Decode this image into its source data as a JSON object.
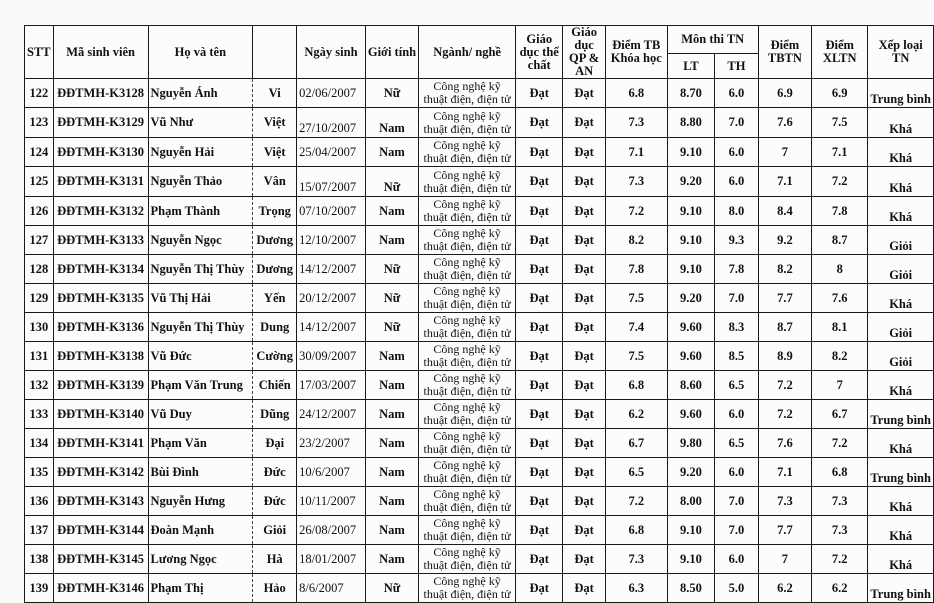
{
  "headers": {
    "stt": "STT",
    "ma": "Mã sinh viên",
    "ho_ten": "Họ và tên",
    "ngay_sinh": "Ngày sinh",
    "gioi_tinh": "Giới tính",
    "nganh": "Ngành/ nghề",
    "gdtc": "Giáo dục thể chất",
    "gdqp": "Giáo dục QP & AN",
    "diem_tb": "Điểm TB Khóa học",
    "mon_thi": "Môn thi TN",
    "lt": "LT",
    "th": "TH",
    "tbtn": "Điểm TBTN",
    "xltn": "Điểm XLTN",
    "xep_loai": "Xếp loại TN"
  },
  "rows": [
    {
      "stt": "122",
      "ma": "ĐĐTMH-K3128",
      "ho": "Nguyễn Ánh",
      "ten": "Vi",
      "ngay": "02/06/2007",
      "gt": "Nữ",
      "nganh": "Công nghệ kỹ thuật điện, điện tử",
      "gdtc": "Đạt",
      "gdqp": "Đạt",
      "tb": "6.8",
      "lt": "8.70",
      "th": "6.0",
      "tbtn": "6.9",
      "xltn": "6.9",
      "xl": "Trung bình"
    },
    {
      "stt": "123",
      "ma": "ĐĐTMH-K3129",
      "ho": "Vũ Như",
      "ten": "Việt",
      "ngay": "27/10/2007",
      "gt": "Nam",
      "nganh": "Công nghệ kỹ thuật điện, điện tử",
      "gdtc": "Đạt",
      "gdqp": "Đạt",
      "tb": "7.3",
      "lt": "8.80",
      "th": "7.0",
      "tbtn": "7.6",
      "xltn": "7.5",
      "xl": "Khá"
    },
    {
      "stt": "124",
      "ma": "ĐĐTMH-K3130",
      "ho": "Nguyễn Hải",
      "ten": "Việt",
      "ngay": "25/04/2007",
      "gt": "Nam",
      "nganh": "Công nghệ kỹ thuật điện, điện tử",
      "gdtc": "Đạt",
      "gdqp": "Đạt",
      "tb": "7.1",
      "lt": "9.10",
      "th": "6.0",
      "tbtn": "7",
      "xltn": "7.1",
      "xl": "Khá"
    },
    {
      "stt": "125",
      "ma": "ĐĐTMH-K3131",
      "ho": "Nguyễn Thảo",
      "ten": "Vân",
      "ngay": "15/07/2007",
      "gt": "Nữ",
      "nganh": "Công nghệ kỹ thuật điện, điện tử",
      "gdtc": "Đạt",
      "gdqp": "Đạt",
      "tb": "7.3",
      "lt": "9.20",
      "th": "6.0",
      "tbtn": "7.1",
      "xltn": "7.2",
      "xl": "Khá"
    },
    {
      "stt": "126",
      "ma": "ĐĐTMH-K3132",
      "ho": "Phạm Thành",
      "ten": "Trọng",
      "ngay": "07/10/2007",
      "gt": "Nam",
      "nganh": "Công nghệ kỹ thuật điện, điện tử",
      "gdtc": "Đạt",
      "gdqp": "Đạt",
      "tb": "7.2",
      "lt": "9.10",
      "th": "8.0",
      "tbtn": "8.4",
      "xltn": "7.8",
      "xl": "Khá"
    },
    {
      "stt": "127",
      "ma": "ĐĐTMH-K3133",
      "ho": "Nguyễn Ngọc",
      "ten": "Dương",
      "ngay": "12/10/2007",
      "gt": "Nam",
      "nganh": "Công nghệ kỹ thuật điện, điện tử",
      "gdtc": "Đạt",
      "gdqp": "Đạt",
      "tb": "8.2",
      "lt": "9.10",
      "th": "9.3",
      "tbtn": "9.2",
      "xltn": "8.7",
      "xl": "Giỏi"
    },
    {
      "stt": "128",
      "ma": "ĐĐTMH-K3134",
      "ho": "Nguyễn Thị Thùy",
      "ten": "Dương",
      "ngay": "14/12/2007",
      "gt": "Nữ",
      "nganh": "Công nghệ kỹ thuật điện, điện tử",
      "gdtc": "Đạt",
      "gdqp": "Đạt",
      "tb": "7.8",
      "lt": "9.10",
      "th": "7.8",
      "tbtn": "8.2",
      "xltn": "8",
      "xl": "Giỏi"
    },
    {
      "stt": "129",
      "ma": "ĐĐTMH-K3135",
      "ho": "Vũ Thị Hải",
      "ten": "Yến",
      "ngay": "20/12/2007",
      "gt": "Nữ",
      "nganh": "Công nghệ kỹ thuật điện, điện tử",
      "gdtc": "Đạt",
      "gdqp": "Đạt",
      "tb": "7.5",
      "lt": "9.20",
      "th": "7.0",
      "tbtn": "7.7",
      "xltn": "7.6",
      "xl": "Khá"
    },
    {
      "stt": "130",
      "ma": "ĐĐTMH-K3136",
      "ho": "Nguyễn Thị Thùy",
      "ten": "Dung",
      "ngay": "14/12/2007",
      "gt": "Nữ",
      "nganh": "Công nghệ kỹ thuật điện, điện tử",
      "gdtc": "Đạt",
      "gdqp": "Đạt",
      "tb": "7.4",
      "lt": "9.60",
      "th": "8.3",
      "tbtn": "8.7",
      "xltn": "8.1",
      "xl": "Giỏi"
    },
    {
      "stt": "131",
      "ma": "ĐĐTMH-K3138",
      "ho": "Vũ Đức",
      "ten": "Cường",
      "ngay": "30/09/2007",
      "gt": "Nam",
      "nganh": "Công nghệ kỹ thuật điện, điện tử",
      "gdtc": "Đạt",
      "gdqp": "Đạt",
      "tb": "7.5",
      "lt": "9.60",
      "th": "8.5",
      "tbtn": "8.9",
      "xltn": "8.2",
      "xl": "Giỏi"
    },
    {
      "stt": "132",
      "ma": "ĐĐTMH-K3139",
      "ho": "Phạm Văn Trung",
      "ten": "Chiến",
      "ngay": "17/03/2007",
      "gt": "Nam",
      "nganh": "Công nghệ kỹ thuật điện, điện tử",
      "gdtc": "Đạt",
      "gdqp": "Đạt",
      "tb": "6.8",
      "lt": "8.60",
      "th": "6.5",
      "tbtn": "7.2",
      "xltn": "7",
      "xl": "Khá"
    },
    {
      "stt": "133",
      "ma": "ĐĐTMH-K3140",
      "ho": "Vũ Duy",
      "ten": "Dũng",
      "ngay": "24/12/2007",
      "gt": "Nam",
      "nganh": "Công nghệ kỹ thuật điện, điện tử",
      "gdtc": "Đạt",
      "gdqp": "Đạt",
      "tb": "6.2",
      "lt": "9.60",
      "th": "6.0",
      "tbtn": "7.2",
      "xltn": "6.7",
      "xl": "Trung bình"
    },
    {
      "stt": "134",
      "ma": "ĐĐTMH-K3141",
      "ho": "Phạm Văn",
      "ten": "Đại",
      "ngay": "23/2/2007",
      "gt": "Nam",
      "nganh": "Công nghệ kỹ thuật điện, điện tử",
      "gdtc": "Đạt",
      "gdqp": "Đạt",
      "tb": "6.7",
      "lt": "9.80",
      "th": "6.5",
      "tbtn": "7.6",
      "xltn": "7.2",
      "xl": "Khá"
    },
    {
      "stt": "135",
      "ma": "ĐĐTMH-K3142",
      "ho": "Bùi Đình",
      "ten": "Đức",
      "ngay": "10/6/2007",
      "gt": "Nam",
      "nganh": "Công nghệ kỹ thuật điện, điện tử",
      "gdtc": "Đạt",
      "gdqp": "Đạt",
      "tb": "6.5",
      "lt": "9.20",
      "th": "6.0",
      "tbtn": "7.1",
      "xltn": "6.8",
      "xl": "Trung bình"
    },
    {
      "stt": "136",
      "ma": "ĐĐTMH-K3143",
      "ho": "Nguyễn Hưng",
      "ten": "Đức",
      "ngay": "10/11/2007",
      "gt": "Nam",
      "nganh": "Công nghệ kỹ thuật điện, điện tử",
      "gdtc": "Đạt",
      "gdqp": "Đạt",
      "tb": "7.2",
      "lt": "8.00",
      "th": "7.0",
      "tbtn": "7.3",
      "xltn": "7.3",
      "xl": "Khá"
    },
    {
      "stt": "137",
      "ma": "ĐĐTMH-K3144",
      "ho": "Đoàn Mạnh",
      "ten": "Giỏi",
      "ngay": "26/08/2007",
      "gt": "Nam",
      "nganh": "Công nghệ kỹ thuật điện, điện tử",
      "gdtc": "Đạt",
      "gdqp": "Đạt",
      "tb": "6.8",
      "lt": "9.10",
      "th": "7.0",
      "tbtn": "7.7",
      "xltn": "7.3",
      "xl": "Khá"
    },
    {
      "stt": "138",
      "ma": "ĐĐTMH-K3145",
      "ho": "Lương Ngọc",
      "ten": "Hà",
      "ngay": "18/01/2007",
      "gt": "Nam",
      "nganh": "Công nghệ kỹ thuật điện, điện tử",
      "gdtc": "Đạt",
      "gdqp": "Đạt",
      "tb": "7.3",
      "lt": "9.10",
      "th": "6.0",
      "tbtn": "7",
      "xltn": "7.2",
      "xl": "Khá"
    },
    {
      "stt": "139",
      "ma": "ĐĐTMH-K3146",
      "ho": "Phạm Thị",
      "ten": "Hảo",
      "ngay": "8/6/2007",
      "gt": "Nữ",
      "nganh": "Công nghệ kỹ thuật điện, điện tử",
      "gdtc": "Đạt",
      "gdqp": "Đạt",
      "tb": "6.3",
      "lt": "8.50",
      "th": "5.0",
      "tbtn": "6.2",
      "xltn": "6.2",
      "xl": "Trung bình"
    }
  ]
}
